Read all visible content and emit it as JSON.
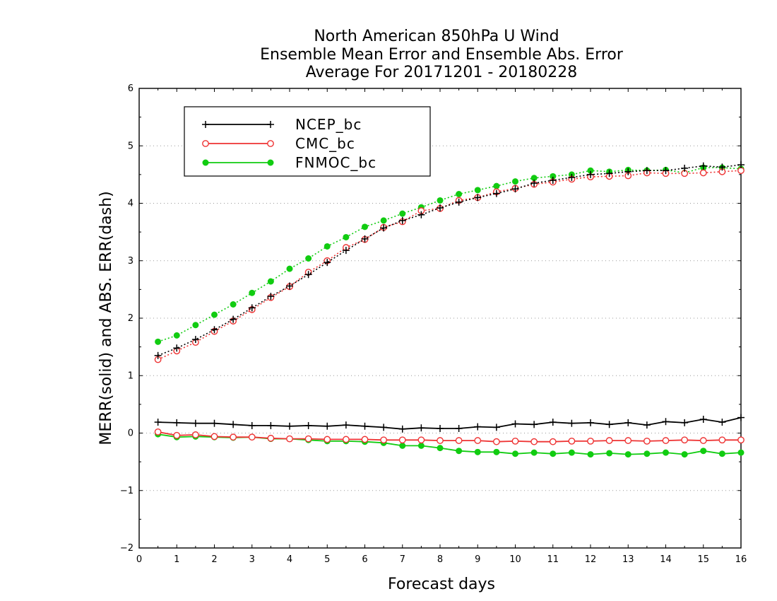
{
  "chart_data": {
    "type": "line",
    "title": "North American 850hPa U Wind",
    "subtitle": "Ensemble Mean Error and Ensemble Abs. Error",
    "subtitle2": "Average For 20171201 - 20180228",
    "xlabel": "Forecast days",
    "ylabel": "MERR(solid) and ABS. ERR(dash)",
    "xlim": [
      0,
      16
    ],
    "ylim": [
      -2,
      6
    ],
    "x_ticks": [
      "0",
      "1",
      "2",
      "3",
      "4",
      "5",
      "6",
      "7",
      "8",
      "9",
      "10",
      "11",
      "12",
      "13",
      "14",
      "15",
      "16"
    ],
    "y_ticks": [
      "6",
      "5",
      "4",
      "3",
      "2",
      "1",
      "0",
      "−1",
      "−2"
    ],
    "grid": true,
    "legend_position": "top-left",
    "x": [
      0.5,
      1,
      1.5,
      2,
      2.5,
      3,
      3.5,
      4,
      4.5,
      5,
      5.5,
      6,
      6.5,
      7,
      7.5,
      8,
      8.5,
      9,
      9.5,
      10,
      10.5,
      11,
      11.5,
      12,
      12.5,
      13,
      13.5,
      14,
      14.5,
      15,
      15.5,
      16
    ],
    "series": [
      {
        "name": "NCEP_bc",
        "color": "#000000",
        "marker": "plus",
        "merr": [
          0.19,
          0.18,
          0.17,
          0.17,
          0.15,
          0.13,
          0.13,
          0.12,
          0.13,
          0.12,
          0.14,
          0.12,
          0.1,
          0.07,
          0.09,
          0.08,
          0.08,
          0.11,
          0.1,
          0.16,
          0.15,
          0.19,
          0.17,
          0.18,
          0.15,
          0.18,
          0.14,
          0.2,
          0.18,
          0.24,
          0.19,
          0.27
        ],
        "abs_err": [
          1.35,
          1.48,
          1.63,
          1.8,
          1.98,
          2.18,
          2.38,
          2.56,
          2.76,
          2.97,
          3.18,
          3.38,
          3.57,
          3.7,
          3.8,
          3.92,
          4.02,
          4.1,
          4.17,
          4.25,
          4.35,
          4.4,
          4.45,
          4.5,
          4.52,
          4.55,
          4.57,
          4.57,
          4.61,
          4.65,
          4.63,
          4.67
        ]
      },
      {
        "name": "CMC_bc",
        "color": "#ee3333",
        "marker": "open-circle",
        "merr": [
          0.02,
          -0.04,
          -0.03,
          -0.06,
          -0.07,
          -0.07,
          -0.09,
          -0.1,
          -0.1,
          -0.11,
          -0.11,
          -0.11,
          -0.12,
          -0.12,
          -0.12,
          -0.13,
          -0.13,
          -0.13,
          -0.15,
          -0.14,
          -0.15,
          -0.15,
          -0.14,
          -0.14,
          -0.13,
          -0.13,
          -0.14,
          -0.13,
          -0.12,
          -0.13,
          -0.12,
          -0.12
        ],
        "abs_err": [
          1.28,
          1.43,
          1.58,
          1.77,
          1.95,
          2.15,
          2.36,
          2.55,
          2.8,
          3.0,
          3.23,
          3.37,
          3.58,
          3.68,
          3.87,
          3.91,
          4.05,
          4.1,
          4.2,
          4.26,
          4.33,
          4.37,
          4.42,
          4.46,
          4.47,
          4.48,
          4.53,
          4.52,
          4.52,
          4.53,
          4.55,
          4.57
        ]
      },
      {
        "name": "FNMOC_bc",
        "color": "#11cc11",
        "marker": "filled-circle",
        "merr": [
          -0.02,
          -0.07,
          -0.06,
          -0.07,
          -0.08,
          -0.07,
          -0.1,
          -0.1,
          -0.12,
          -0.14,
          -0.14,
          -0.15,
          -0.17,
          -0.22,
          -0.22,
          -0.26,
          -0.31,
          -0.33,
          -0.33,
          -0.36,
          -0.34,
          -0.36,
          -0.34,
          -0.37,
          -0.35,
          -0.37,
          -0.36,
          -0.34,
          -0.37,
          -0.31,
          -0.36,
          -0.34
        ],
        "abs_err": [
          1.59,
          1.7,
          1.88,
          2.06,
          2.24,
          2.44,
          2.64,
          2.86,
          3.04,
          3.25,
          3.41,
          3.59,
          3.7,
          3.82,
          3.93,
          4.05,
          4.16,
          4.23,
          4.3,
          4.38,
          4.44,
          4.47,
          4.5,
          4.57,
          4.55,
          4.58,
          4.57,
          4.58,
          4.53,
          4.62,
          4.62,
          4.6
        ]
      }
    ]
  }
}
